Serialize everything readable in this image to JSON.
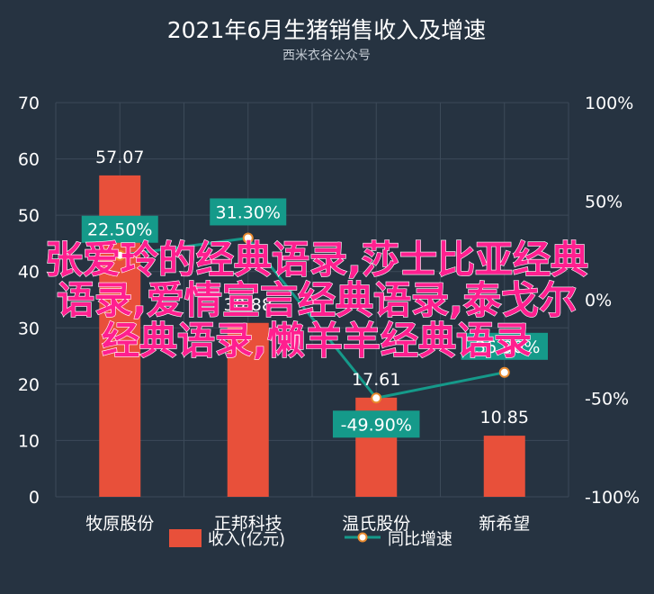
{
  "chart_data": {
    "type": "bar",
    "title": "2021年6月生猪销售收入及增速",
    "subtitle": "西米衣谷公众号",
    "categories": [
      "牧原股份",
      "正邦科技",
      "温氏股份",
      "新希望"
    ],
    "series": [
      {
        "name": "收入(亿元)",
        "type": "bar",
        "axis": "left",
        "values": [
          57.07,
          30.88,
          17.61,
          10.85
        ],
        "labels": [
          "57.07",
          "30.88",
          "17.61",
          "10.85"
        ]
      },
      {
        "name": "同比增速",
        "type": "line",
        "axis": "right",
        "values": [
          22.5,
          31.3,
          -49.9,
          -36.9
        ],
        "labels": [
          "22.50%",
          "31.30%",
          "-49.90%",
          "-36.90%"
        ]
      }
    ],
    "y_left": {
      "ylim": [
        0,
        70
      ],
      "ticks": [
        "0",
        "10",
        "20",
        "30",
        "40",
        "50",
        "60",
        "70"
      ]
    },
    "y_right": {
      "ylim": [
        -100,
        100
      ],
      "ticks": [
        "-100%",
        "-50%",
        "0%",
        "50%",
        "100%"
      ]
    },
    "grid": true,
    "legend_position": "bottom",
    "colors": {
      "background": "#263341",
      "bar": "#e8503a",
      "line": "#159a8a",
      "marker_fill": "#ffffff",
      "marker_stroke": "#e88a2e",
      "label_bg": "#159a8a",
      "grid": "#3c4a59",
      "text": "#ffffff"
    }
  },
  "watermark": {
    "lines": [
      "张爱玲的经典语录,莎士比亚经典",
      "语录,爱情宣言经典语录,泰戈尔",
      "经典语录,懒羊羊经典语录"
    ],
    "color": "#ff1f8f"
  }
}
